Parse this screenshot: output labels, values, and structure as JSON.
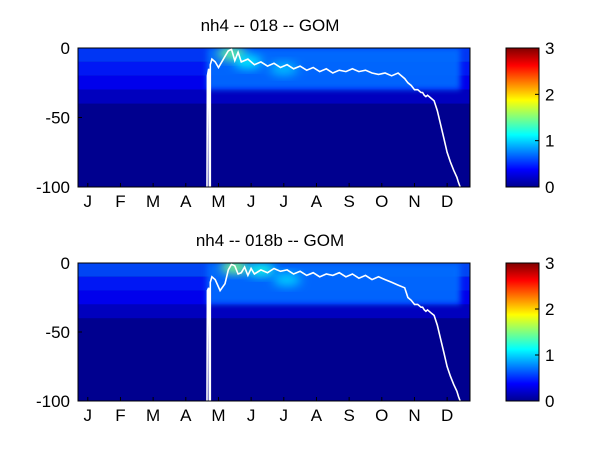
{
  "chart_data": [
    {
      "type": "heatmap",
      "title": "nh4 -- 018 -- GOM",
      "xlabel": "",
      "ylabel": "",
      "x_ticks": [
        "J",
        "F",
        "M",
        "A",
        "M",
        "J",
        "J",
        "A",
        "S",
        "O",
        "N",
        "D"
      ],
      "y_ticks": [
        "0",
        "-50",
        "-100"
      ],
      "xlim": [
        0,
        12
      ],
      "ylim": [
        -100,
        0
      ],
      "colorbar": {
        "ticks": [
          "3",
          "2",
          "1",
          "0"
        ],
        "range": [
          0,
          3
        ],
        "colormap": "jet"
      },
      "surface_layer": {
        "depth": [
          -10,
          -20,
          -30,
          -40
        ],
        "value": [
          0.55,
          0.45,
          0.35,
          0.2
        ]
      },
      "hotspots": [
        {
          "month": 4.7,
          "depth": -4,
          "value": 1.45
        },
        {
          "month": 5.2,
          "depth": -10,
          "value": 1.1
        },
        {
          "month": 6.3,
          "depth": -15,
          "value": 0.95
        }
      ],
      "contour_line": {
        "month": [
          3.95,
          3.96,
          4.0,
          4.02,
          4.05,
          4.05,
          4.1,
          4.2,
          4.3,
          4.5,
          4.6,
          4.7,
          4.8,
          4.9,
          5.0,
          5.2,
          5.4,
          5.6,
          5.8,
          6.0,
          6.2,
          6.4,
          6.6,
          6.8,
          7.0,
          7.2,
          7.4,
          7.6,
          7.8,
          8.0,
          8.2,
          8.4,
          8.6,
          8.8,
          9.0,
          9.2,
          9.4,
          9.6,
          9.8,
          10.0,
          10.1,
          10.2,
          10.3,
          10.4,
          10.5,
          10.55,
          10.6,
          10.65,
          10.7,
          10.75,
          10.8,
          10.9,
          11.0,
          11.1,
          11.2,
          11.3,
          11.4,
          11.5,
          11.6,
          11.65,
          11.7
        ],
        "depth": [
          -100,
          -20,
          -15,
          -100,
          -100,
          -12,
          -8,
          -10,
          -14,
          -6,
          -2,
          -1,
          -9,
          -3,
          -10,
          -8,
          -12,
          -10,
          -13,
          -11,
          -14,
          -12,
          -15,
          -13,
          -16,
          -14,
          -17,
          -15,
          -18,
          -16,
          -17,
          -15,
          -17,
          -16,
          -18,
          -19,
          -18,
          -20,
          -18,
          -22,
          -25,
          -27,
          -30,
          -30,
          -32,
          -32,
          -34,
          -35,
          -34,
          -35,
          -36,
          -38,
          -45,
          -55,
          -65,
          -75,
          -82,
          -88,
          -93,
          -97,
          -100
        ]
      }
    },
    {
      "type": "heatmap",
      "title": "nh4 -- 018b -- GOM",
      "xlabel": "",
      "ylabel": "",
      "x_ticks": [
        "J",
        "F",
        "M",
        "A",
        "M",
        "J",
        "J",
        "A",
        "S",
        "O",
        "N",
        "D"
      ],
      "y_ticks": [
        "0",
        "-50",
        "-100"
      ],
      "xlim": [
        0,
        12
      ],
      "ylim": [
        -100,
        0
      ],
      "colorbar": {
        "ticks": [
          "3",
          "2",
          "1",
          "0"
        ],
        "range": [
          0,
          3
        ],
        "colormap": "jet"
      },
      "surface_layer": {
        "depth": [
          -10,
          -20,
          -30,
          -40
        ],
        "value": [
          0.6,
          0.45,
          0.35,
          0.2
        ]
      },
      "hotspots": [
        {
          "month": 4.8,
          "depth": -3,
          "value": 1.5
        },
        {
          "month": 5.6,
          "depth": -5,
          "value": 1.2
        },
        {
          "month": 6.4,
          "depth": -12,
          "value": 1.0
        }
      ],
      "contour_line": {
        "month": [
          3.95,
          3.96,
          4.0,
          4.02,
          4.05,
          4.05,
          4.1,
          4.2,
          4.35,
          4.5,
          4.6,
          4.7,
          4.8,
          4.9,
          5.0,
          5.1,
          5.2,
          5.3,
          5.4,
          5.6,
          5.8,
          6.0,
          6.2,
          6.4,
          6.6,
          6.8,
          7.0,
          7.2,
          7.4,
          7.6,
          7.8,
          8.0,
          8.2,
          8.4,
          8.6,
          8.8,
          9.0,
          9.2,
          9.4,
          9.6,
          9.8,
          10.0,
          10.1,
          10.2,
          10.3,
          10.4,
          10.5,
          10.55,
          10.6,
          10.65,
          10.7,
          10.75,
          10.8,
          10.9,
          11.0,
          11.1,
          11.2,
          11.3,
          11.4,
          11.5,
          11.6,
          11.65,
          11.7
        ],
        "depth": [
          -100,
          -20,
          -18,
          -100,
          -100,
          -14,
          -10,
          -12,
          -20,
          -15,
          -5,
          -1,
          -2,
          -8,
          -7,
          -3,
          -9,
          -4,
          -8,
          -5,
          -7,
          -4,
          -6,
          -5,
          -8,
          -6,
          -9,
          -7,
          -10,
          -8,
          -9,
          -7,
          -10,
          -8,
          -11,
          -9,
          -12,
          -10,
          -12,
          -14,
          -16,
          -18,
          -25,
          -27,
          -30,
          -30,
          -32,
          -32,
          -34,
          -35,
          -34,
          -35,
          -36,
          -38,
          -45,
          -55,
          -65,
          -75,
          -82,
          -88,
          -93,
          -97,
          -100
        ]
      }
    }
  ]
}
